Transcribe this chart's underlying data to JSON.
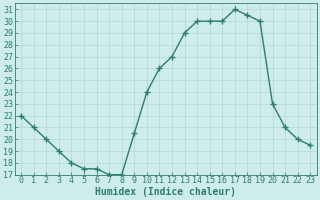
{
  "x": [
    0,
    1,
    2,
    3,
    4,
    5,
    6,
    7,
    8,
    9,
    10,
    11,
    12,
    13,
    14,
    15,
    16,
    17,
    18,
    19,
    20,
    21,
    22,
    23
  ],
  "y": [
    22,
    21,
    20,
    19,
    18,
    17.5,
    17.5,
    17,
    17,
    20.5,
    24,
    26,
    27,
    29,
    30,
    30,
    30,
    31,
    30.5,
    30,
    23,
    21,
    20,
    19.5
  ],
  "line_color": "#2e7d6e",
  "marker": "+",
  "marker_size": 4,
  "bg_color": "#ceecea",
  "grid_color": "#b0d8d4",
  "xlabel": "Humidex (Indice chaleur)",
  "xlabel_fontsize": 7,
  "tick_fontsize": 6,
  "ylim": [
    17,
    31.5
  ],
  "xlim": [
    -0.5,
    23.5
  ],
  "yticks": [
    17,
    18,
    19,
    20,
    21,
    22,
    23,
    24,
    25,
    26,
    27,
    28,
    29,
    30,
    31
  ],
  "xticks": [
    0,
    1,
    2,
    3,
    4,
    5,
    6,
    7,
    8,
    9,
    10,
    11,
    12,
    13,
    14,
    15,
    16,
    17,
    18,
    19,
    20,
    21,
    22,
    23
  ]
}
